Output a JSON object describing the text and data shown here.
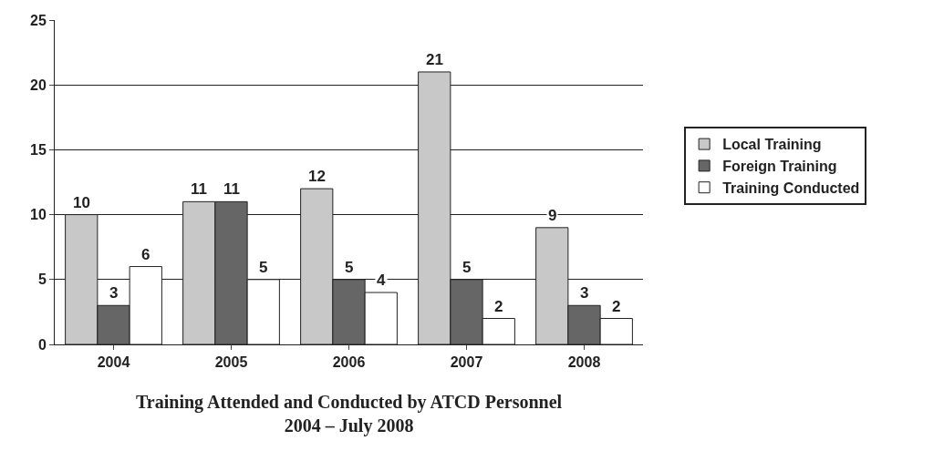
{
  "chart_data": {
    "type": "bar",
    "title": "Training Attended and Conducted by ATCD Personnel",
    "subtitle": "2004 – July 2008",
    "categories": [
      "2004",
      "2005",
      "2006",
      "2007",
      "2008"
    ],
    "series": [
      {
        "name": "Local Training",
        "color": "#c8c8c8",
        "values": [
          10,
          11,
          12,
          21,
          9
        ]
      },
      {
        "name": "Foreign Training",
        "color": "#666666",
        "values": [
          3,
          11,
          5,
          5,
          3
        ]
      },
      {
        "name": "Training Conducted",
        "color": "#ffffff",
        "values": [
          6,
          5,
          4,
          2,
          2
        ]
      }
    ],
    "ylim": [
      0,
      25
    ],
    "yticks": [
      0,
      5,
      10,
      15,
      20,
      25
    ],
    "grid": "y",
    "legend": "right",
    "data_labels": true
  }
}
